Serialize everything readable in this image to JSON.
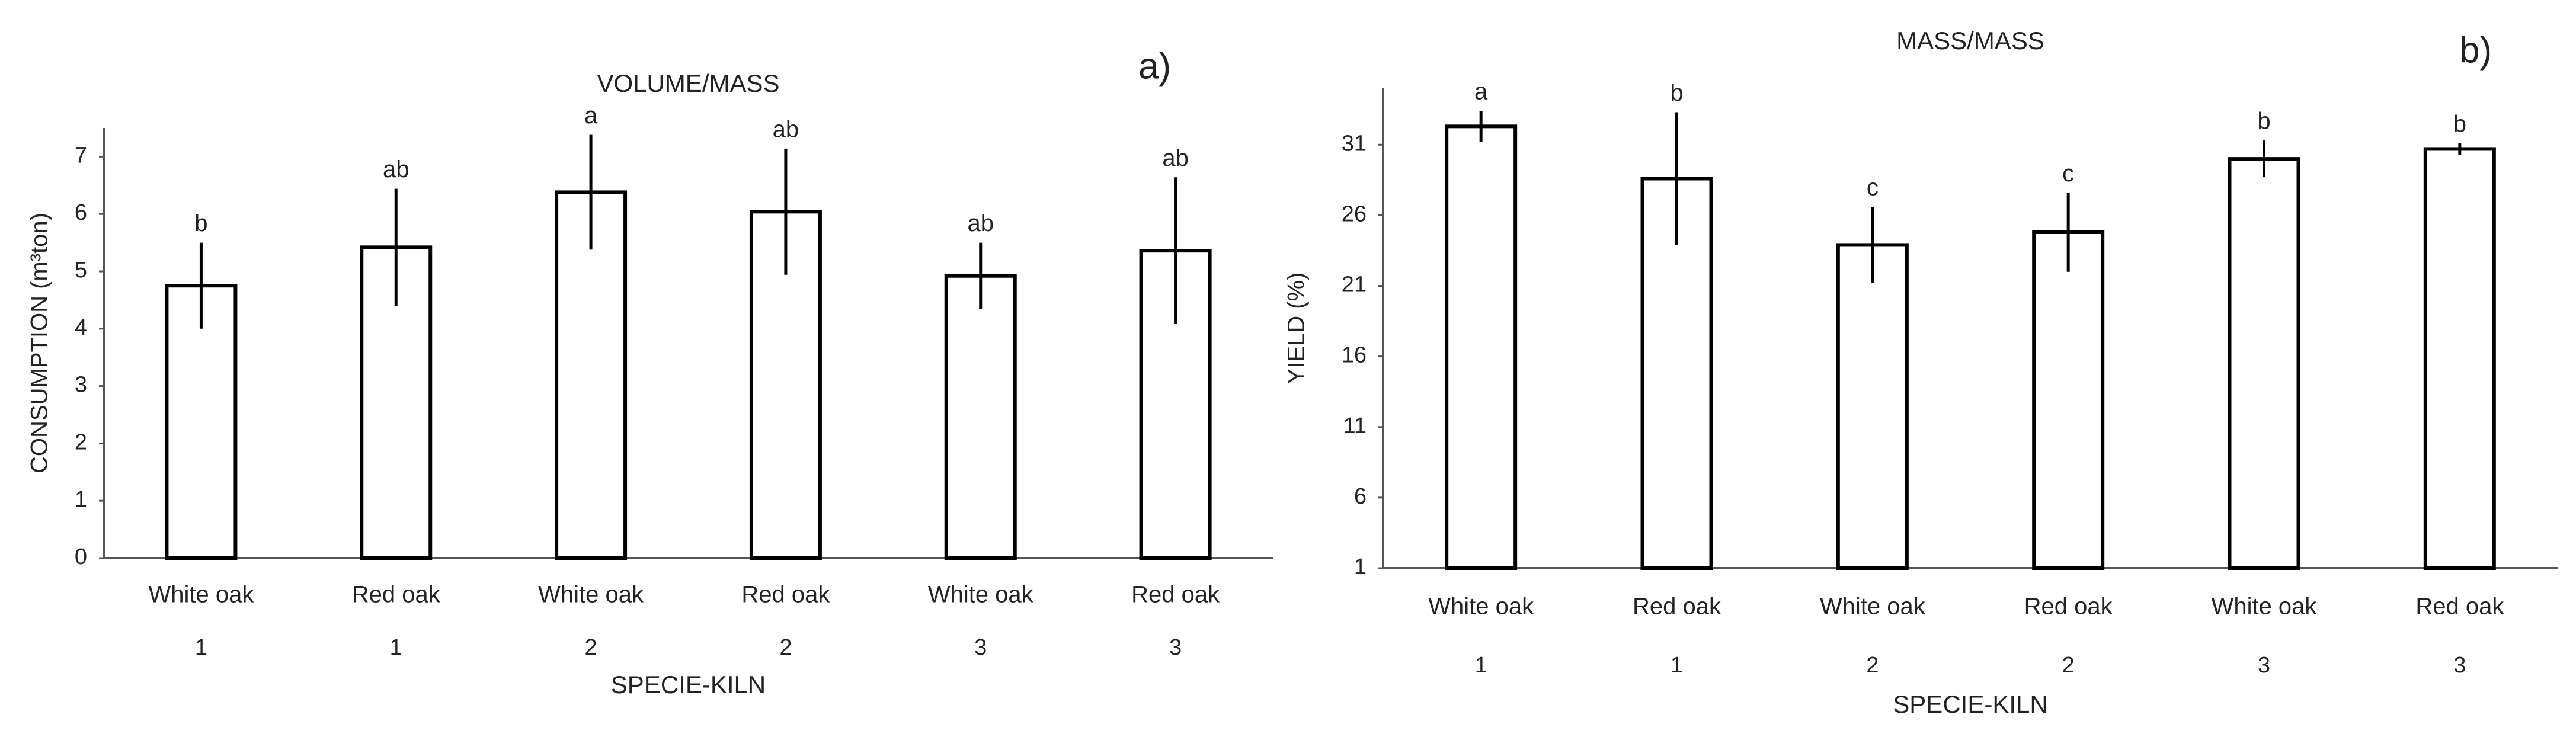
{
  "chart_data": [
    {
      "type": "bar",
      "title": "VOLUME/MASS",
      "panel_label": "a)",
      "x_label": "SPECIE-KILN",
      "y_label": "CONSUMPTION (m³ton)",
      "categories": [
        [
          "White oak",
          "1"
        ],
        [
          "Red oak",
          "1"
        ],
        [
          "White oak",
          "2"
        ],
        [
          "Red oak",
          "2"
        ],
        [
          "White oak",
          "3"
        ],
        [
          "Red oak",
          "3"
        ]
      ],
      "values": [
        4.75,
        5.42,
        6.38,
        6.04,
        4.92,
        5.36
      ],
      "errors": [
        0.75,
        1.02,
        1.0,
        1.1,
        0.58,
        1.28
      ],
      "annotations": [
        "b",
        "ab",
        "a",
        "ab",
        "ab",
        "ab"
      ],
      "color": "#ffffff",
      "ylim": [
        0,
        7.5
      ],
      "yticks": [
        0,
        1,
        2,
        3,
        4,
        5,
        6,
        7
      ],
      "grid": false
    },
    {
      "type": "bar",
      "title": "MASS/MASS",
      "panel_label": "b)",
      "x_label": "SPECIE-KILN",
      "y_label": "YIELD (%)",
      "categories": [
        [
          "White oak",
          "1"
        ],
        [
          "Red oak",
          "1"
        ],
        [
          "White oak",
          "2"
        ],
        [
          "Red oak",
          "2"
        ],
        [
          "White oak",
          "3"
        ],
        [
          "Red oak",
          "3"
        ]
      ],
      "values": [
        32.3,
        28.6,
        23.9,
        24.8,
        30.0,
        30.7
      ],
      "errors": [
        1.1,
        4.7,
        2.7,
        2.8,
        1.3,
        0.4
      ],
      "annotations": [
        "a",
        "b",
        "c",
        "c",
        "b",
        "b"
      ],
      "color": "#ffffff",
      "ylim": [
        1,
        35
      ],
      "yticks": [
        1,
        6,
        11,
        16,
        21,
        26,
        31
      ],
      "grid": false
    }
  ]
}
